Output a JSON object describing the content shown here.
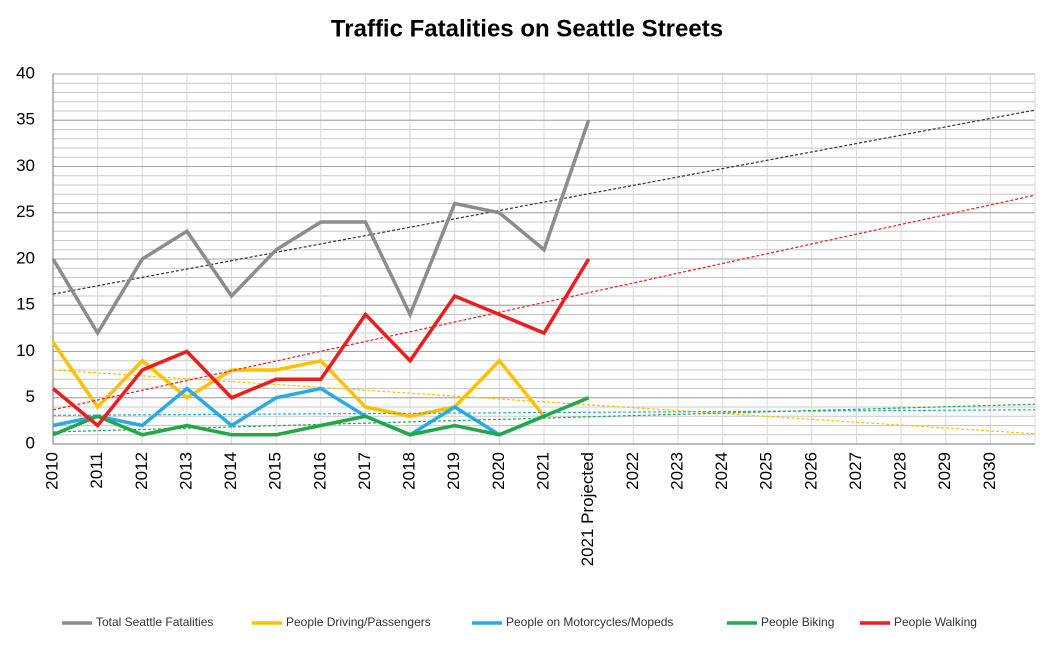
{
  "chart_data": {
    "type": "line",
    "title": "Traffic Fatalities on Seattle Streets",
    "categories": [
      "2010",
      "2011",
      "2012",
      "2013",
      "2014",
      "2015",
      "2016",
      "2017",
      "2018",
      "2019",
      "2020",
      "2021",
      "2021 Projected",
      "2022",
      "2023",
      "2024",
      "2025",
      "2026",
      "2027",
      "2028",
      "2029",
      "2030",
      null
    ],
    "ylim": [
      0,
      40
    ],
    "yticks": [
      0,
      5,
      10,
      15,
      20,
      25,
      30,
      35,
      40
    ],
    "grid": true,
    "minor_grid_step": 1,
    "legend": "bottom",
    "series": [
      {
        "name": "Total Seattle Fatalities",
        "color": "#8c8c8c",
        "values": [
          20,
          12,
          20,
          23,
          16,
          21,
          24,
          24,
          14,
          26,
          25,
          21,
          35,
          null,
          null,
          null,
          null,
          null,
          null,
          null,
          null,
          null,
          null
        ],
        "trendline": [
          16.2,
          36.1
        ],
        "trendline_color": "#333333"
      },
      {
        "name": "People Driving/Passengers",
        "color": "#ffc000",
        "values": [
          11,
          4,
          9,
          5,
          8,
          8,
          9,
          4,
          3,
          4,
          9,
          3,
          null,
          null,
          null,
          null,
          null,
          null,
          null,
          null,
          null,
          null,
          null
        ],
        "trendline": [
          8,
          1.1
        ],
        "trendline_color": "#ffc000"
      },
      {
        "name": "People on Motorcycles/Mopeds",
        "color": "#29abe2",
        "values": [
          2,
          3,
          2,
          6,
          2,
          5,
          6,
          3,
          1,
          4,
          1,
          3,
          null,
          null,
          null,
          null,
          null,
          null,
          null,
          null,
          null,
          null,
          null
        ],
        "trendline": [
          3.1,
          3.7
        ],
        "trendline_color": "#29abe2"
      },
      {
        "name": "People Biking",
        "color": "#22a84a",
        "values": [
          1,
          3,
          1,
          2,
          1,
          1,
          2,
          3,
          1,
          2,
          1,
          3,
          5,
          null,
          null,
          null,
          null,
          null,
          null,
          null,
          null,
          null,
          null
        ],
        "trendline": [
          1.3,
          4.3
        ],
        "trendline_color": "#22a84a"
      },
      {
        "name": "People Walking",
        "color": "#ee1c1c",
        "values": [
          6,
          2,
          8,
          10,
          5,
          7,
          7,
          14,
          9,
          16,
          14,
          12,
          20,
          null,
          null,
          null,
          null,
          null,
          null,
          null,
          null,
          null,
          null
        ],
        "trendline": [
          3.7,
          26.9
        ],
        "trendline_color": "#ee1c1c"
      }
    ]
  }
}
